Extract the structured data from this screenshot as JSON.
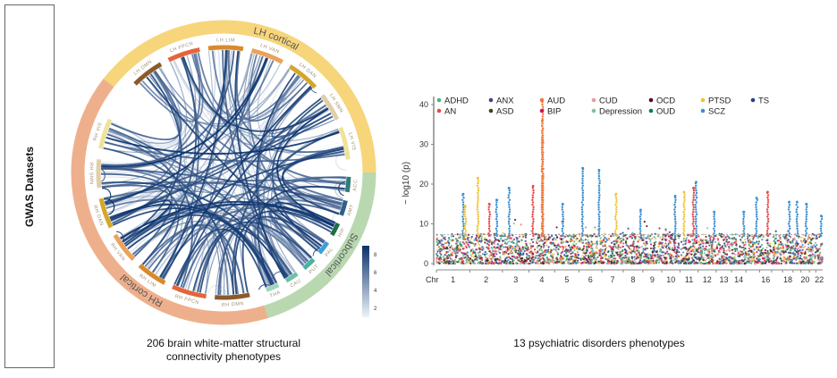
{
  "side_label": "GWAS Datasets",
  "captions": {
    "left": [
      "206 brain white-matter structural",
      "connectivity phenotypes"
    ],
    "right": "13 psychiatric disorders phenotypes"
  },
  "chord": {
    "rings": [
      {
        "label": "LH cortical",
        "color": "#f7d57a"
      },
      {
        "label": "Subcortical",
        "color": "#b9d8b0"
      },
      {
        "label": "RH cortical",
        "color": "#eeb08c"
      }
    ],
    "segments": [
      {
        "label": "LH DMN",
        "color": "#8b5a2b"
      },
      {
        "label": "LH FPCN",
        "color": "#e5643a"
      },
      {
        "label": "LH LIM",
        "color": "#d98a2b"
      },
      {
        "label": "LH VAN",
        "color": "#eba25a"
      },
      {
        "label": "LH DAN",
        "color": "#d4a72c"
      },
      {
        "label": "LH SMN",
        "color": "#e0cfa8"
      },
      {
        "label": "LH VIS",
        "color": "#efe29a"
      },
      {
        "label": "ACC",
        "color": "#2e7d7a"
      },
      {
        "label": "AMY",
        "color": "#2f5f8a"
      },
      {
        "label": "HIP",
        "color": "#1f6e4a"
      },
      {
        "label": "PAL",
        "color": "#3aa0d8"
      },
      {
        "label": "PUT",
        "color": "#4ab3a0"
      },
      {
        "label": "CAU",
        "color": "#6cc4a8"
      },
      {
        "label": "THA",
        "color": "#9fd6bf"
      },
      {
        "label": "RH DMN",
        "color": "#8b5a2b"
      },
      {
        "label": "RH FPCN",
        "color": "#e5643a"
      },
      {
        "label": "RH LIM",
        "color": "#d98a2b"
      },
      {
        "label": "RH VAN",
        "color": "#eba25a"
      },
      {
        "label": "RH DAN",
        "color": "#d4a72c"
      },
      {
        "label": "RH SMN",
        "color": "#e0cfa8"
      },
      {
        "label": "RH VIS",
        "color": "#efe29a"
      }
    ],
    "colorbar": {
      "ticks": [
        "2",
        "4",
        "6",
        "8"
      ],
      "range": [
        1,
        9
      ],
      "color_low": "#eef3fa",
      "color_high": "#08306b"
    }
  },
  "chart_data": {
    "type": "scatter",
    "subtype": "manhattan",
    "xlabel": "Chr",
    "ylabel": "− log10 (p)",
    "ylim": [
      0,
      42
    ],
    "yticks": [
      0,
      10,
      20,
      30,
      40
    ],
    "grid": false,
    "legend_placement": "top",
    "genome_wide_threshold": 7.3,
    "chromosomes": [
      "1",
      "2",
      "3",
      "4",
      "5",
      "6",
      "7",
      "8",
      "9",
      "10",
      "11",
      "12",
      "13",
      "14",
      "15",
      "16",
      "17",
      "18",
      "19",
      "20",
      "21",
      "22"
    ],
    "chromosome_tick_labels": [
      "1",
      "2",
      "3",
      "4",
      "5",
      "6",
      "7",
      "8",
      "9",
      "10",
      "11",
      "12",
      "13",
      "14",
      "",
      "16",
      "",
      "18",
      "",
      "20",
      "",
      "22"
    ],
    "chromosome_lengths_mb": [
      249,
      243,
      198,
      191,
      181,
      171,
      159,
      146,
      141,
      136,
      135,
      134,
      115,
      107,
      102,
      90,
      81,
      78,
      59,
      63,
      48,
      51
    ],
    "series": [
      {
        "name": "ADHD",
        "color": "#4fb37a"
      },
      {
        "name": "AN",
        "color": "#e8474a"
      },
      {
        "name": "ANX",
        "color": "#4a3d8f"
      },
      {
        "name": "ASD",
        "color": "#4a3b1e"
      },
      {
        "name": "AUD",
        "color": "#ee7a3b"
      },
      {
        "name": "BIP",
        "color": "#d4145a"
      },
      {
        "name": "CUD",
        "color": "#e89aa6"
      },
      {
        "name": "Depression",
        "color": "#7dc3a0"
      },
      {
        "name": "OCD",
        "color": "#5a0a1a"
      },
      {
        "name": "OUD",
        "color": "#0f7a4e"
      },
      {
        "name": "PTSD",
        "color": "#f2c232"
      },
      {
        "name": "SCZ",
        "color": "#3a8fd0"
      },
      {
        "name": "TS",
        "color": "#2d3d8a"
      }
    ],
    "peaks": [
      {
        "chr": "1",
        "pos_mb": 200,
        "trait": "SCZ",
        "y": 17.5
      },
      {
        "chr": "1",
        "pos_mb": 215,
        "trait": "PTSD",
        "y": 14.5
      },
      {
        "chr": "2",
        "pos_mb": 60,
        "trait": "PTSD",
        "y": 21.5
      },
      {
        "chr": "2",
        "pos_mb": 145,
        "trait": "AN",
        "y": 15
      },
      {
        "chr": "2",
        "pos_mb": 200,
        "trait": "SCZ",
        "y": 16
      },
      {
        "chr": "3",
        "pos_mb": 50,
        "trait": "SCZ",
        "y": 19
      },
      {
        "chr": "4",
        "pos_mb": 30,
        "trait": "AN",
        "y": 19.5
      },
      {
        "chr": "4",
        "pos_mb": 100,
        "trait": "AUD",
        "y": 41
      },
      {
        "chr": "4",
        "pos_mb": 100,
        "trait": "AUD",
        "y": 36
      },
      {
        "chr": "4",
        "pos_mb": 102,
        "trait": "AUD",
        "y": 31
      },
      {
        "chr": "4",
        "pos_mb": 100,
        "trait": "AUD",
        "y": 22
      },
      {
        "chr": "5",
        "pos_mb": 60,
        "trait": "SCZ",
        "y": 15
      },
      {
        "chr": "6",
        "pos_mb": 28,
        "trait": "SCZ",
        "y": 24
      },
      {
        "chr": "6",
        "pos_mb": 150,
        "trait": "SCZ",
        "y": 23.5
      },
      {
        "chr": "7",
        "pos_mb": 105,
        "trait": "PTSD",
        "y": 17.5
      },
      {
        "chr": "8",
        "pos_mb": 130,
        "trait": "SCZ",
        "y": 13.5
      },
      {
        "chr": "10",
        "pos_mb": 100,
        "trait": "SCZ",
        "y": 17
      },
      {
        "chr": "11",
        "pos_mb": 30,
        "trait": "PTSD",
        "y": 18
      },
      {
        "chr": "11",
        "pos_mb": 100,
        "trait": "AN",
        "y": 19
      },
      {
        "chr": "11",
        "pos_mb": 120,
        "trait": "SCZ",
        "y": 20.5
      },
      {
        "chr": "12",
        "pos_mb": 120,
        "trait": "SCZ",
        "y": 13
      },
      {
        "chr": "14",
        "pos_mb": 90,
        "trait": "SCZ",
        "y": 13
      },
      {
        "chr": "15",
        "pos_mb": 80,
        "trait": "SCZ",
        "y": 16.5
      },
      {
        "chr": "16",
        "pos_mb": 60,
        "trait": "AN",
        "y": 18
      },
      {
        "chr": "18",
        "pos_mb": 50,
        "trait": "SCZ",
        "y": 15.5
      },
      {
        "chr": "19",
        "pos_mb": 30,
        "trait": "SCZ",
        "y": 15.5
      },
      {
        "chr": "20",
        "pos_mb": 40,
        "trait": "SCZ",
        "y": 15
      },
      {
        "chr": "22",
        "pos_mb": 40,
        "trait": "SCZ",
        "y": 12
      }
    ]
  }
}
